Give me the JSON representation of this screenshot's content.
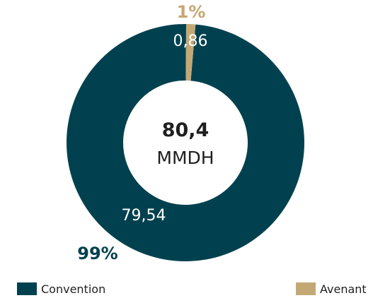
{
  "chart_data": {
    "type": "donut",
    "center": {
      "value": "80,4",
      "unit": "MMDH"
    },
    "series": [
      {
        "name": "Convention",
        "value": 79.54,
        "value_label": "79,54",
        "percent_label": "99%",
        "color": "#01414F"
      },
      {
        "name": "Avenant",
        "value": 0.86,
        "value_label": "0,86",
        "percent_label": "1%",
        "color": "#C4A874"
      }
    ],
    "legend": {
      "placement": "bottom",
      "items": [
        "Convention",
        "Avenant"
      ]
    }
  }
}
